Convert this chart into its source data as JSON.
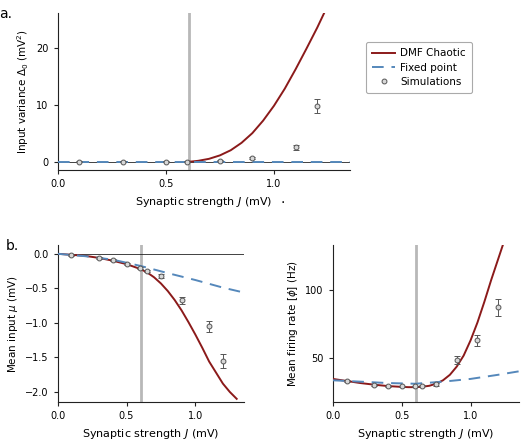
{
  "vline_x": 0.605,
  "vline_color": "#b8b8b8",
  "dmf_color": "#8b1a1a",
  "fp_color": "#5588bb",
  "sim_color": "#555555",
  "sim_markersize": 3.5,
  "bg_color": "#ffffff",
  "panel_a": {
    "xlabel": "Synaptic strength $J$ (mV)",
    "ylabel": "Input variance $\\Delta_0$ (mV$^2$)",
    "xlim": [
      0.0,
      1.35
    ],
    "ylim": [
      -1.5,
      26
    ],
    "yticks": [
      0,
      10,
      20
    ],
    "xticks": [
      0.0,
      0.5,
      1.0
    ],
    "dmf_J": [
      0.605,
      0.62,
      0.65,
      0.7,
      0.75,
      0.8,
      0.85,
      0.9,
      0.95,
      1.0,
      1.05,
      1.1,
      1.15,
      1.2,
      1.25,
      1.3
    ],
    "dmf_delta": [
      0.0,
      0.03,
      0.15,
      0.5,
      1.1,
      2.0,
      3.3,
      5.0,
      7.2,
      9.8,
      12.8,
      16.2,
      19.8,
      23.5,
      27.5,
      32.0
    ],
    "fp_J": [
      0.0,
      0.5,
      1.0,
      1.35
    ],
    "fp_delta": [
      0.0,
      0.0,
      0.0,
      0.0
    ],
    "sim_J": [
      0.1,
      0.3,
      0.5,
      0.6,
      0.75,
      0.9,
      1.1,
      1.2
    ],
    "sim_delta": [
      0.0,
      0.0,
      0.0,
      0.0,
      0.15,
      0.6,
      2.5,
      9.8
    ],
    "sim_yerr": [
      0.05,
      0.05,
      0.05,
      0.05,
      0.1,
      0.2,
      0.5,
      1.2
    ]
  },
  "panel_b_left": {
    "xlabel": "Synaptic strength $J$ (mV)",
    "ylabel": "Mean input $\\mu$ (mV)",
    "xlim": [
      0.0,
      1.35
    ],
    "ylim": [
      -2.15,
      0.12
    ],
    "yticks": [
      0.0,
      -0.5,
      -1.0,
      -1.5,
      -2.0
    ],
    "xticks": [
      0.0,
      0.5,
      1.0
    ],
    "dmf_J": [
      0.0,
      0.1,
      0.2,
      0.3,
      0.4,
      0.5,
      0.55,
      0.6,
      0.65,
      0.7,
      0.75,
      0.8,
      0.85,
      0.9,
      0.95,
      1.0,
      1.05,
      1.1,
      1.15,
      1.2,
      1.25,
      1.3
    ],
    "dmf_mu": [
      0.0,
      -0.015,
      -0.03,
      -0.06,
      -0.1,
      -0.15,
      -0.185,
      -0.22,
      -0.27,
      -0.34,
      -0.43,
      -0.54,
      -0.67,
      -0.82,
      -0.99,
      -1.17,
      -1.36,
      -1.56,
      -1.72,
      -1.88,
      -2.0,
      -2.1
    ],
    "fp_J": [
      0.0,
      0.2,
      0.4,
      0.6,
      0.8,
      1.0,
      1.2,
      1.35
    ],
    "fp_mu": [
      0.0,
      -0.035,
      -0.085,
      -0.175,
      -0.28,
      -0.38,
      -0.49,
      -0.56
    ],
    "sim_J": [
      0.1,
      0.3,
      0.4,
      0.5,
      0.6,
      0.65,
      0.75,
      0.9,
      1.1,
      1.2
    ],
    "sim_mu": [
      -0.015,
      -0.06,
      -0.09,
      -0.15,
      -0.2,
      -0.25,
      -0.32,
      -0.67,
      -1.05,
      -1.55
    ],
    "sim_yerr": [
      0.01,
      0.01,
      0.01,
      0.01,
      0.015,
      0.02,
      0.03,
      0.05,
      0.08,
      0.1
    ]
  },
  "panel_b_right": {
    "xlabel": "Synaptic strength $J$ (mV)",
    "ylabel": "Mean firing rate $[\\phi]$ (Hz)",
    "xlim": [
      0.0,
      1.35
    ],
    "ylim": [
      18,
      132
    ],
    "yticks": [
      50,
      100
    ],
    "xticks": [
      0.0,
      0.5,
      1.0
    ],
    "dmf_J": [
      0.0,
      0.1,
      0.2,
      0.3,
      0.4,
      0.5,
      0.55,
      0.6,
      0.65,
      0.7,
      0.75,
      0.8,
      0.85,
      0.9,
      0.95,
      1.0,
      1.05,
      1.1,
      1.15,
      1.2,
      1.25,
      1.3
    ],
    "dmf_phi": [
      35.0,
      33.5,
      32.0,
      30.8,
      29.8,
      29.2,
      29.0,
      29.0,
      29.3,
      30.0,
      31.5,
      34.0,
      38.0,
      44.0,
      52.0,
      63.0,
      76.0,
      91.0,
      107.0,
      122.0,
      137.0,
      152.0
    ],
    "fp_J": [
      0.0,
      0.2,
      0.4,
      0.6,
      0.8,
      1.0,
      1.2,
      1.35
    ],
    "fp_phi": [
      34.0,
      33.0,
      32.0,
      31.5,
      33.0,
      35.0,
      38.0,
      40.5
    ],
    "sim_J": [
      0.1,
      0.3,
      0.4,
      0.5,
      0.6,
      0.65,
      0.75,
      0.9,
      1.05,
      1.2
    ],
    "sim_phi": [
      33.5,
      30.5,
      29.5,
      29.5,
      29.5,
      30.0,
      31.0,
      49.0,
      63.0,
      87.0
    ],
    "sim_yerr": [
      0.5,
      0.5,
      0.5,
      0.5,
      0.5,
      0.5,
      1.0,
      3.0,
      4.0,
      6.0
    ]
  },
  "legend_labels": [
    "DMF Chaotic",
    "Fixed point",
    "Simulations"
  ]
}
